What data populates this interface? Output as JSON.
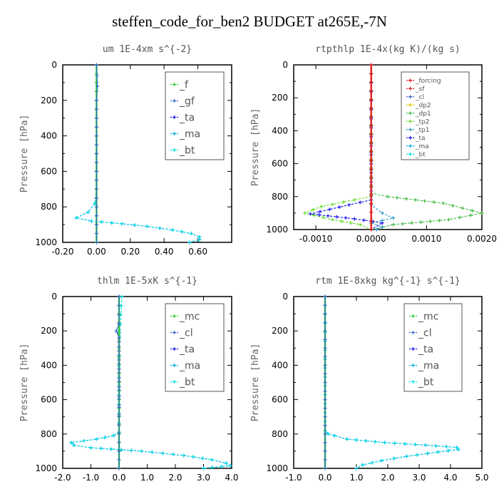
{
  "title": "steffen_code_for_ben2  BUDGET at265E,-7N",
  "colors": {
    "f": "#33cc33",
    "gf": "#3366cc",
    "ta": "#1a1aee",
    "ma": "#00a8e0",
    "bt": "#00e5e5",
    "mc": "#33cc33",
    "cl": "#3366cc",
    "forcing": "#ee1111",
    "sf": "#dd2222",
    "dp2": "#e6c200",
    "dp1": "#44bb44",
    "tp2": "#66dd33",
    "tp1": "#3399cc"
  },
  "chart_data": [
    {
      "type": "line",
      "title": "um   1E-4xm s^{-2}",
      "ylabel": "Pressure [hPa]",
      "xlim": [
        -0.2,
        0.8
      ],
      "ylim": [
        1000,
        0
      ],
      "xticks": [
        "-0.20",
        "0.00",
        "0.20",
        "0.40",
        "0.60"
      ],
      "xtick_values": [
        -0.2,
        0.0,
        0.2,
        0.4,
        0.6
      ],
      "yticks": [
        0,
        200,
        400,
        600,
        800,
        1000
      ],
      "legend": [
        "_f",
        "_gf",
        "_ta",
        "_ma",
        "_bt"
      ],
      "legend_loc": "top-right",
      "series": [
        {
          "name": "_ta",
          "color_key": "ta",
          "points": [
            [
              0,
              0
            ],
            [
              0,
              700
            ],
            [
              -0.01,
              780
            ],
            [
              -0.05,
              830
            ],
            [
              -0.12,
              862
            ],
            [
              -0.03,
              880
            ],
            [
              0.15,
              895
            ],
            [
              0.3,
              910
            ],
            [
              0.45,
              930
            ],
            [
              0.56,
              950
            ],
            [
              0.61,
              970
            ],
            [
              0.61,
              985
            ],
            [
              0.55,
              1000
            ]
          ]
        },
        {
          "name": "_bt",
          "color_key": "bt",
          "points": [
            [
              0,
              0
            ],
            [
              0,
              700
            ],
            [
              -0.01,
              780
            ],
            [
              -0.05,
              830
            ],
            [
              -0.12,
              862
            ],
            [
              -0.03,
              880
            ],
            [
              0.15,
              895
            ],
            [
              0.3,
              910
            ],
            [
              0.45,
              930
            ],
            [
              0.56,
              950
            ],
            [
              0.61,
              970
            ],
            [
              0.61,
              985
            ],
            [
              0.55,
              1000
            ]
          ]
        },
        {
          "name": "_f",
          "color_key": "f",
          "points": [
            [
              0,
              0
            ],
            [
              0,
              1000
            ]
          ]
        },
        {
          "name": "_gf",
          "color_key": "gf",
          "points": [
            [
              0,
              0
            ],
            [
              0.005,
              120
            ],
            [
              0,
              200
            ],
            [
              0,
              1000
            ]
          ]
        }
      ]
    },
    {
      "type": "line",
      "title": "rtpthlp   1E-4x(kg K)/(kg s)",
      "ylabel": "Pressure [hPa]",
      "xlim": [
        -0.0014,
        0.002
      ],
      "ylim": [
        1000,
        0
      ],
      "xticks": [
        "-0.0010",
        "0.0000",
        "0.0010",
        "0.0020"
      ],
      "xtick_values": [
        -0.001,
        0.0,
        0.001,
        0.002
      ],
      "yticks": [
        0,
        200,
        400,
        600,
        800,
        1000
      ],
      "legend": [
        "_forcing",
        "_sf",
        "_cl",
        "_dp2",
        "_dp1",
        "_tp2",
        "_tp1",
        "_ta",
        "_ma",
        "_bt"
      ],
      "legend_loc": "top-right",
      "series": [
        {
          "name": "_dp1",
          "color_key": "dp1",
          "points": [
            [
              0,
              0
            ],
            [
              0,
              780
            ],
            [
              0.0003,
              800
            ],
            [
              0.0013,
              840
            ],
            [
              0.002,
              900
            ],
            [
              0.0014,
              940
            ],
            [
              0.0004,
              970
            ],
            [
              0,
              1000
            ]
          ]
        },
        {
          "name": "_tp2",
          "color_key": "tp2",
          "points": [
            [
              0,
              0
            ],
            [
              0,
              800
            ],
            [
              -0.0003,
              820
            ],
            [
              -0.0009,
              860
            ],
            [
              -0.0012,
              900
            ],
            [
              -0.0007,
              940
            ],
            [
              -0.0002,
              970
            ],
            [
              0,
              1000
            ]
          ]
        },
        {
          "name": "_ta",
          "color_key": "ta",
          "points": [
            [
              0,
              0
            ],
            [
              0,
              820
            ],
            [
              -0.0004,
              850
            ],
            [
              -0.0011,
              905
            ],
            [
              -0.0003,
              935
            ],
            [
              0.0002,
              960
            ],
            [
              0,
              1000
            ]
          ]
        },
        {
          "name": "_tp1",
          "color_key": "tp1",
          "points": [
            [
              0,
              0
            ],
            [
              0,
              850
            ],
            [
              0.0002,
              900
            ],
            [
              0.0004,
              930
            ],
            [
              0,
              960
            ],
            [
              0.0002,
              985
            ],
            [
              0.0001,
              1000
            ]
          ]
        },
        {
          "name": "_forcing",
          "color_key": "forcing",
          "points": [
            [
              0,
              0
            ],
            [
              0,
              1000
            ]
          ]
        },
        {
          "name": "_sf",
          "color_key": "sf",
          "points": [
            [
              0,
              0
            ],
            [
              0,
              1000
            ]
          ]
        }
      ]
    },
    {
      "type": "line",
      "title": "thlm   1E-5xK s^{-1}",
      "ylabel": "Pressure [hPa]",
      "xlim": [
        -2.0,
        4.0
      ],
      "ylim": [
        1000,
        0
      ],
      "xticks": [
        "-2.0",
        "-1.0",
        "0.0",
        "1.0",
        "2.0",
        "3.0",
        "4.0"
      ],
      "xtick_values": [
        -2,
        -1,
        0,
        1,
        2,
        3,
        4
      ],
      "yticks": [
        0,
        200,
        400,
        600,
        800,
        1000
      ],
      "legend": [
        "_mc",
        "_cl",
        "_ta",
        "_ma",
        "_bt"
      ],
      "legend_loc": "top-right",
      "series": [
        {
          "name": "_ta",
          "color_key": "ta",
          "points": [
            [
              0,
              0
            ],
            [
              0,
              790
            ],
            [
              -0.2,
              810
            ],
            [
              -0.8,
              830
            ],
            [
              -1.7,
              850
            ],
            [
              -1.6,
              865
            ],
            [
              -1.0,
              880
            ],
            [
              0.8,
              900
            ],
            [
              2.3,
              925
            ],
            [
              3.3,
              950
            ],
            [
              3.8,
              970
            ],
            [
              3.95,
              985
            ],
            [
              3.0,
              1000
            ]
          ]
        },
        {
          "name": "_bt",
          "color_key": "bt",
          "points": [
            [
              0.1,
              0
            ],
            [
              0.05,
              160
            ],
            [
              0,
              300
            ],
            [
              0,
              790
            ],
            [
              -0.2,
              810
            ],
            [
              -0.8,
              830
            ],
            [
              -1.7,
              850
            ],
            [
              -1.6,
              865
            ],
            [
              -1.0,
              880
            ],
            [
              0.8,
              900
            ],
            [
              2.3,
              925
            ],
            [
              3.3,
              950
            ],
            [
              3.8,
              970
            ],
            [
              3.95,
              985
            ],
            [
              3.0,
              1000
            ]
          ]
        },
        {
          "name": "_mc",
          "color_key": "mc",
          "points": [
            [
              0,
              0
            ],
            [
              0,
              1000
            ]
          ]
        },
        {
          "name": "_cl",
          "color_key": "cl",
          "points": [
            [
              0,
              0
            ],
            [
              0,
              160
            ],
            [
              -0.1,
              200
            ],
            [
              0,
              240
            ],
            [
              0,
              1000
            ]
          ]
        }
      ]
    },
    {
      "type": "line",
      "title": "rtm   1E-8xkg kg^{-1} s^{-1}",
      "ylabel": "Pressure [hPa]",
      "xlim": [
        -1.0,
        5.0
      ],
      "ylim": [
        1000,
        0
      ],
      "xticks": [
        "-1.0",
        "0.0",
        "1.0",
        "2.0",
        "3.0",
        "4.0",
        "5.0"
      ],
      "xtick_values": [
        -1,
        0,
        1,
        2,
        3,
        4,
        5
      ],
      "yticks": [
        0,
        200,
        400,
        600,
        800,
        1000
      ],
      "legend": [
        "_mc",
        "_cl",
        "_ta",
        "_ma",
        "_bt"
      ],
      "legend_loc": "top-right",
      "series": [
        {
          "name": "_ta",
          "color_key": "ta",
          "points": [
            [
              0,
              0
            ],
            [
              0,
              780
            ],
            [
              0.1,
              800
            ],
            [
              0.3,
              810
            ],
            [
              0.7,
              830
            ],
            [
              1.9,
              850
            ],
            [
              3.2,
              865
            ],
            [
              4.2,
              878
            ],
            [
              4.25,
              890
            ],
            [
              3.6,
              905
            ],
            [
              2.6,
              930
            ],
            [
              1.8,
              955
            ],
            [
              1.2,
              980
            ],
            [
              1.0,
              1000
            ]
          ]
        },
        {
          "name": "_bt",
          "color_key": "bt",
          "points": [
            [
              0,
              0
            ],
            [
              0,
              780
            ],
            [
              0.1,
              800
            ],
            [
              0.3,
              810
            ],
            [
              0.7,
              830
            ],
            [
              1.9,
              850
            ],
            [
              3.2,
              865
            ],
            [
              4.2,
              878
            ],
            [
              4.25,
              890
            ],
            [
              3.6,
              905
            ],
            [
              2.6,
              930
            ],
            [
              1.8,
              955
            ],
            [
              1.2,
              980
            ],
            [
              1.0,
              1000
            ]
          ]
        },
        {
          "name": "_mc",
          "color_key": "mc",
          "points": [
            [
              0,
              0
            ],
            [
              0,
              1000
            ]
          ]
        },
        {
          "name": "_cl",
          "color_key": "cl",
          "points": [
            [
              0,
              0
            ],
            [
              0,
              1000
            ]
          ]
        }
      ]
    }
  ]
}
